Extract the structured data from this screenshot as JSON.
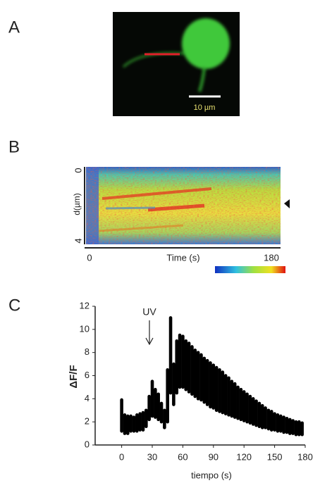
{
  "panel_a": {
    "label": "A",
    "scale_bar": "10 µm"
  },
  "panel_b": {
    "label": "B",
    "y_axis_label": "d(µm)",
    "y_top": "0",
    "y_bottom": "4",
    "x_start": "0",
    "x_axis_label": "Time (s)",
    "x_end": "180"
  },
  "panel_c": {
    "label": "C"
  },
  "chart_data": {
    "type": "range",
    "x_axis_label": "tiempo (s)",
    "y_axis_label": "ΔF/F",
    "annotation": "UV",
    "x": [
      0,
      3,
      6,
      9,
      12,
      15,
      18,
      21,
      24,
      27,
      30,
      33,
      36,
      39,
      42,
      45,
      48,
      51,
      54,
      57,
      60,
      63,
      66,
      69,
      72,
      75,
      78,
      81,
      84,
      87,
      90,
      93,
      96,
      99,
      102,
      105,
      108,
      111,
      114,
      117,
      120,
      123,
      126,
      129,
      132,
      135,
      138,
      141,
      144,
      147,
      150,
      153,
      156,
      159,
      162,
      165,
      168,
      171,
      174,
      177
    ],
    "series": [
      {
        "color": "#000000",
        "values": [
          3.9,
          2.6,
          2.5,
          2.5,
          2.4,
          2.6,
          2.7,
          2.8,
          3.0,
          4.2,
          5.5,
          4.8,
          4.4,
          3.6,
          3.0,
          6.5,
          11.0,
          7.0,
          9.0,
          9.5,
          9.4,
          9.0,
          8.8,
          8.5,
          8.2,
          8.0,
          7.8,
          7.5,
          7.3,
          7.1,
          6.9,
          6.7,
          6.5,
          6.3,
          6.0,
          5.8,
          5.5,
          5.3,
          5.0,
          4.8,
          4.6,
          4.4,
          4.2,
          4.0,
          3.8,
          3.6,
          3.4,
          3.2,
          3.0,
          2.9,
          2.7,
          2.6,
          2.5,
          2.4,
          2.3,
          2.2,
          2.1,
          2.0,
          2.0,
          1.9
        ]
      },
      {
        "color": "#000000",
        "values": [
          1.2,
          1.0,
          1.0,
          1.2,
          1.2,
          1.2,
          1.3,
          1.3,
          1.6,
          2.2,
          2.5,
          2.4,
          2.2,
          2.0,
          1.5,
          2.0,
          4.5,
          3.5,
          4.5,
          5.0,
          5.0,
          4.8,
          4.6,
          4.4,
          4.2,
          4.0,
          3.9,
          3.7,
          3.5,
          3.3,
          3.2,
          3.0,
          2.9,
          2.8,
          2.7,
          2.6,
          2.5,
          2.4,
          2.3,
          2.2,
          2.1,
          2.0,
          1.9,
          1.8,
          1.7,
          1.6,
          1.5,
          1.5,
          1.4,
          1.3,
          1.3,
          1.2,
          1.2,
          1.1,
          1.1,
          1.0,
          1.0,
          0.9,
          0.9,
          0.9
        ]
      }
    ],
    "xlim": [
      -26,
      180
    ],
    "ylim": [
      0,
      12
    ],
    "xticks": [
      0,
      30,
      60,
      90,
      120,
      150,
      180
    ],
    "yticks": [
      0,
      2,
      4,
      6,
      8,
      10,
      12
    ]
  }
}
